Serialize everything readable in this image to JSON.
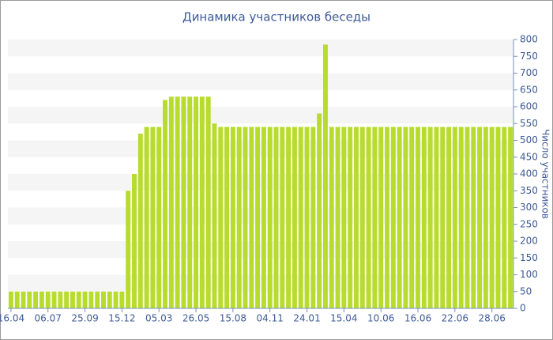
{
  "chart_data": {
    "type": "bar",
    "title": "Динамика участников беседы",
    "y_label": "Число участников",
    "categories": [
      "16.04",
      null,
      null,
      null,
      null,
      null,
      "06.07",
      null,
      null,
      null,
      null,
      null,
      "25.09",
      null,
      null,
      null,
      null,
      null,
      "15.12",
      null,
      null,
      null,
      null,
      null,
      "05.03",
      null,
      null,
      null,
      null,
      null,
      "26.05",
      null,
      null,
      null,
      null,
      null,
      "15.08",
      null,
      null,
      null,
      null,
      null,
      "04.11",
      null,
      null,
      null,
      null,
      null,
      "24.01",
      null,
      null,
      null,
      null,
      null,
      "15.04",
      null,
      null,
      null,
      null,
      null,
      "10.06",
      null,
      null,
      null,
      null,
      null,
      "16.06",
      null,
      null,
      null,
      null,
      null,
      "22.06",
      null,
      null,
      null,
      null,
      null,
      "28.06",
      null,
      null,
      null
    ],
    "values": [
      50,
      50,
      50,
      50,
      50,
      50,
      50,
      50,
      50,
      50,
      50,
      50,
      50,
      50,
      50,
      50,
      50,
      50,
      50,
      350,
      400,
      520,
      540,
      540,
      540,
      620,
      630,
      630,
      630,
      630,
      630,
      630,
      630,
      550,
      540,
      540,
      540,
      540,
      540,
      540,
      540,
      540,
      540,
      540,
      540,
      540,
      540,
      540,
      540,
      540,
      580,
      785,
      540,
      540,
      540,
      540,
      540,
      540,
      540,
      540,
      540,
      540,
      540,
      540,
      540,
      540,
      540,
      540,
      540,
      540,
      540,
      540,
      540,
      540,
      540,
      540,
      540,
      540,
      540,
      540,
      540,
      540
    ],
    "color": "#b8dc2e",
    "ylim": [
      0,
      800
    ],
    "yticks": [
      0,
      50,
      100,
      150,
      200,
      250,
      300,
      350,
      400,
      450,
      500,
      550,
      600,
      650,
      700,
      750,
      800
    ],
    "grid": true
  }
}
